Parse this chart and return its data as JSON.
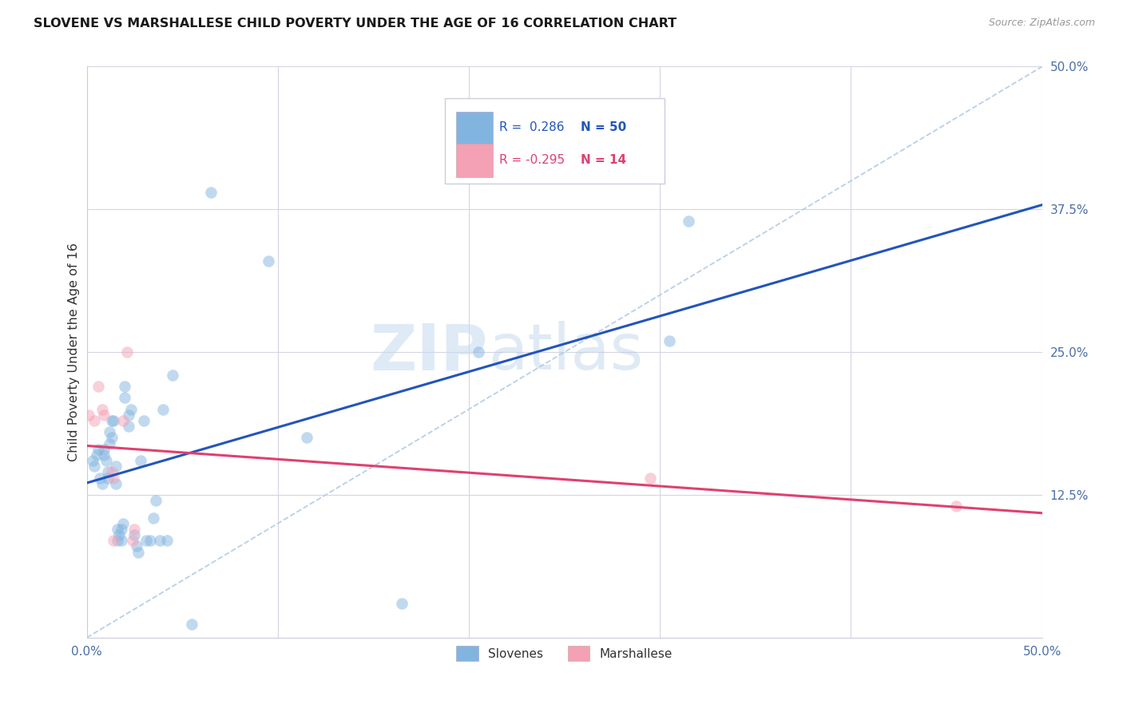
{
  "title": "SLOVENE VS MARSHALLESE CHILD POVERTY UNDER THE AGE OF 16 CORRELATION CHART",
  "source": "Source: ZipAtlas.com",
  "ylabel": "Child Poverty Under the Age of 16",
  "xlim": [
    0.0,
    0.5
  ],
  "ylim": [
    0.0,
    0.5
  ],
  "yticks": [
    0.0,
    0.125,
    0.25,
    0.375,
    0.5
  ],
  "yticklabels": [
    "",
    "12.5%",
    "25.0%",
    "37.5%",
    "50.0%"
  ],
  "xtick_show": [
    0.0,
    0.5
  ],
  "xticklabels_show": [
    "0.0%",
    "50.0%"
  ],
  "slovene_color": "#82b4e0",
  "marshallese_color": "#f4a0b5",
  "slovene_line_color": "#2255bb",
  "marshallese_line_color": "#e04070",
  "diagonal_color": "#b8cfe8",
  "background_color": "#ffffff",
  "grid_color": "#d5d5e5",
  "legend_R_slovene": "0.286",
  "legend_N_slovene": "50",
  "legend_R_marshallese": "-0.295",
  "legend_N_marshallese": "14",
  "slovene_x": [
    0.003,
    0.004,
    0.005,
    0.006,
    0.007,
    0.008,
    0.009,
    0.009,
    0.01,
    0.011,
    0.011,
    0.012,
    0.012,
    0.013,
    0.013,
    0.014,
    0.015,
    0.015,
    0.016,
    0.016,
    0.017,
    0.018,
    0.018,
    0.019,
    0.02,
    0.02,
    0.022,
    0.022,
    0.023,
    0.025,
    0.026,
    0.027,
    0.028,
    0.03,
    0.031,
    0.033,
    0.035,
    0.036,
    0.038,
    0.04,
    0.042,
    0.045,
    0.055,
    0.065,
    0.095,
    0.115,
    0.165,
    0.205,
    0.305,
    0.315
  ],
  "slovene_y": [
    0.155,
    0.15,
    0.16,
    0.165,
    0.14,
    0.135,
    0.165,
    0.16,
    0.155,
    0.145,
    0.14,
    0.18,
    0.17,
    0.19,
    0.175,
    0.19,
    0.135,
    0.15,
    0.085,
    0.095,
    0.09,
    0.085,
    0.095,
    0.1,
    0.22,
    0.21,
    0.195,
    0.185,
    0.2,
    0.09,
    0.08,
    0.075,
    0.155,
    0.19,
    0.085,
    0.085,
    0.105,
    0.12,
    0.085,
    0.2,
    0.085,
    0.23,
    0.012,
    0.39,
    0.33,
    0.175,
    0.03,
    0.25,
    0.26,
    0.365
  ],
  "marshallese_x": [
    0.001,
    0.004,
    0.006,
    0.008,
    0.009,
    0.013,
    0.014,
    0.014,
    0.019,
    0.021,
    0.024,
    0.025,
    0.295,
    0.455
  ],
  "marshallese_y": [
    0.195,
    0.19,
    0.22,
    0.2,
    0.195,
    0.145,
    0.14,
    0.085,
    0.19,
    0.25,
    0.085,
    0.095,
    0.14,
    0.115
  ],
  "watermark_zip": "ZIP",
  "watermark_atlas": "atlas",
  "marker_size": 110,
  "alpha": 0.5
}
